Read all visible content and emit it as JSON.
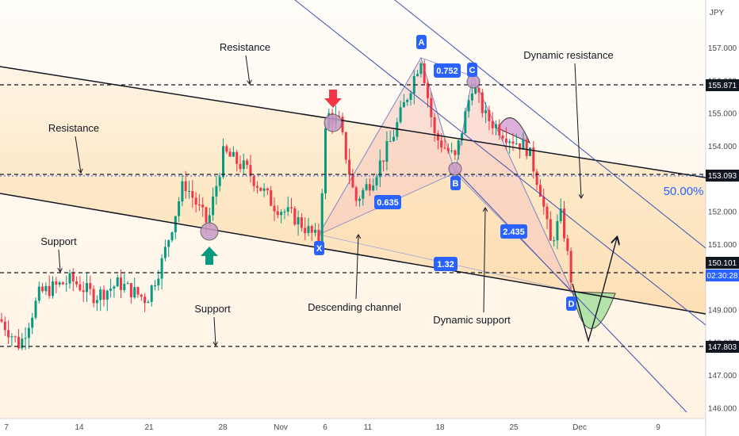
{
  "chart_data": {
    "type": "candlestick",
    "currency": "JPY",
    "price_axis": {
      "ticks": [
        "157.000",
        "156.000",
        "155.000",
        "154.000",
        "153.000",
        "152.000",
        "151.000",
        "150.000",
        "149.000",
        "148.000",
        "147.000",
        "146.000"
      ],
      "range": [
        145.6,
        158.3
      ]
    },
    "time_axis": {
      "ticks": [
        "7",
        "14",
        "21",
        "28",
        "Nov",
        "6",
        "11",
        "18",
        "25",
        "Dec",
        "9"
      ]
    },
    "levels": [
      {
        "value": 155.871,
        "label": "155.871"
      },
      {
        "value": 153.093,
        "label": "153.093"
      },
      {
        "value": 150.101,
        "label": "150.101",
        "sublabel": "02:30:28"
      },
      {
        "value": 147.803,
        "label": "147.803"
      }
    ],
    "harmonic_pattern": {
      "points": [
        {
          "name": "X",
          "price": 151.0
        },
        {
          "name": "A",
          "price": 156.7
        },
        {
          "name": "B",
          "price": 153.5
        },
        {
          "name": "C",
          "price": 155.9
        },
        {
          "name": "D",
          "price": 149.8
        }
      ],
      "ratios": [
        "0.752",
        "0.635",
        "2.435",
        "1.32"
      ]
    },
    "fib_label": "50.00%",
    "annotations": [
      "Resistance",
      "Resistance",
      "Support",
      "Support",
      "Descending channel",
      "Dynamic support",
      "Dynamic resistance"
    ],
    "colors": {
      "up": "#089981",
      "down": "#f23645",
      "badge": "#2962ff",
      "level_badge": "#131722",
      "channel_fill": "#fde7c4"
    }
  }
}
